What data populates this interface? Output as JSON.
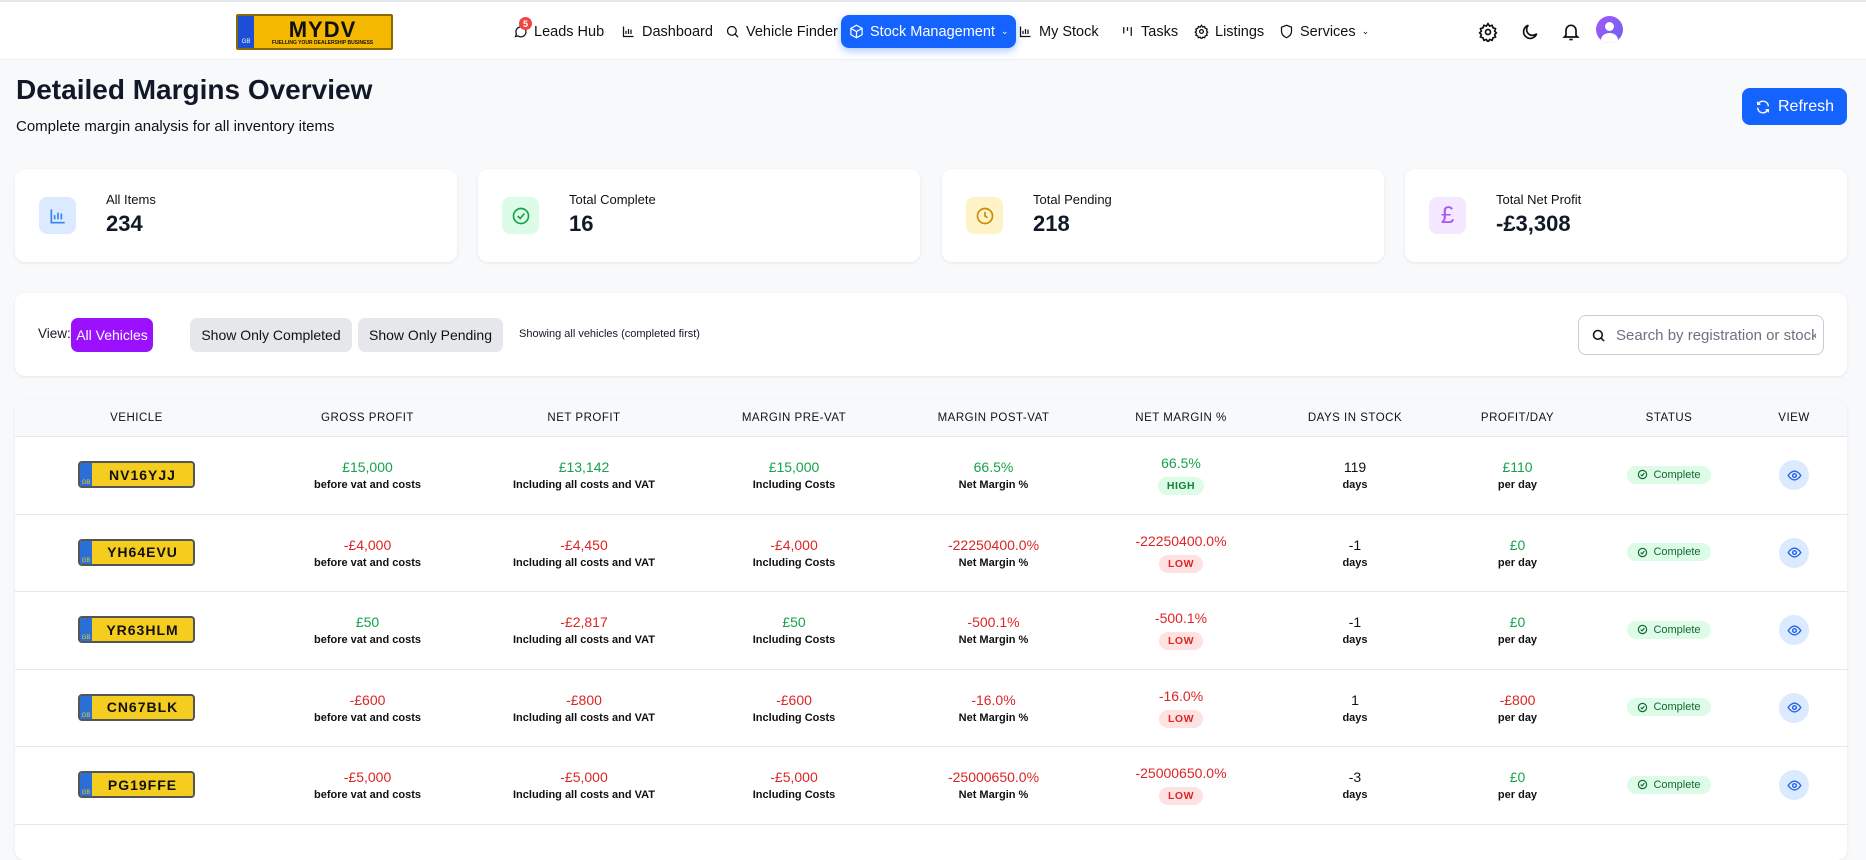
{
  "nav": {
    "logo_text": "MYDV",
    "logo_tagline": "FUELLING YOUR DEALERSHIP BUSINESS",
    "logo_country": "GB",
    "items": [
      {
        "label": "Leads Hub",
        "icon": "chat-icon",
        "badge": "5"
      },
      {
        "label": "Dashboard",
        "icon": "bar-chart-icon"
      },
      {
        "label": "Vehicle Finder",
        "icon": "search-icon"
      },
      {
        "label": "Stock Management",
        "icon": "box-icon",
        "active": true
      },
      {
        "label": "My Stock",
        "icon": "bar-chart-icon"
      },
      {
        "label": "Tasks",
        "icon": "tasks-icon"
      },
      {
        "label": "Listings",
        "icon": "gear-icon"
      },
      {
        "label": "Services",
        "icon": "shield-icon"
      }
    ]
  },
  "page": {
    "title": "Detailed Margins Overview",
    "subtitle": "Complete margin analysis for all inventory items",
    "refresh_label": "Refresh"
  },
  "stats": [
    {
      "label": "All Items",
      "value": "234",
      "color": "#3b82f6"
    },
    {
      "label": "Total Complete",
      "value": "16",
      "color": "#16a34a"
    },
    {
      "label": "Total Pending",
      "value": "218",
      "color": "#ca8a04"
    },
    {
      "label": "Total Net Profit",
      "value": "-£3,308",
      "color": "#a855f7"
    }
  ],
  "filter": {
    "label": "View:",
    "buttons": [
      "All Vehicles",
      "Show Only Completed",
      "Show Only Pending"
    ],
    "active": "All Vehicles",
    "note": "Showing all vehicles (completed first)",
    "search_placeholder": "Search by registration or stock"
  },
  "table": {
    "headers": [
      "VEHICLE",
      "GROSS PROFIT",
      "NET PROFIT",
      "MARGIN PRE-VAT",
      "MARGIN POST-VAT",
      "NET MARGIN %",
      "DAYS IN STOCK",
      "PROFIT/DAY",
      "STATUS",
      "VIEW"
    ],
    "sub": {
      "gross": "before vat and costs",
      "net": "Including all costs and VAT",
      "pre": "Including Costs",
      "post": "Net Margin %",
      "days": "days",
      "perday": "per day"
    },
    "rows": [
      {
        "reg": "NV16YJJ",
        "gross": "£15,000",
        "net": "£13,142",
        "pre": "£15,000",
        "post": "66.5%",
        "netm": "66.5%",
        "level": "HIGH",
        "days": "119",
        "perday": "£110",
        "status": "Complete",
        "gs": "g",
        "ns": "g",
        "ps": "g",
        "pos": "g",
        "nms": "g",
        "pds": "g"
      },
      {
        "reg": "YH64EVU",
        "gross": "-£4,000",
        "net": "-£4,450",
        "pre": "-£4,000",
        "post": "-22250400.0%",
        "netm": "-22250400.0%",
        "level": "LOW",
        "days": "-1",
        "perday": "£0",
        "status": "Complete",
        "gs": "r",
        "ns": "r",
        "ps": "r",
        "pos": "r",
        "nms": "r",
        "pds": "g"
      },
      {
        "reg": "YR63HLM",
        "gross": "£50",
        "net": "-£2,817",
        "pre": "£50",
        "post": "-500.1%",
        "netm": "-500.1%",
        "level": "LOW",
        "days": "-1",
        "perday": "£0",
        "status": "Complete",
        "gs": "g",
        "ns": "r",
        "ps": "g",
        "pos": "r",
        "nms": "r",
        "pds": "g"
      },
      {
        "reg": "CN67BLK",
        "gross": "-£600",
        "net": "-£800",
        "pre": "-£600",
        "post": "-16.0%",
        "netm": "-16.0%",
        "level": "LOW",
        "days": "1",
        "perday": "-£800",
        "status": "Complete",
        "gs": "r",
        "ns": "r",
        "ps": "r",
        "pos": "r",
        "nms": "r",
        "pds": "r"
      },
      {
        "reg": "PG19FFE",
        "gross": "-£5,000",
        "net": "-£5,000",
        "pre": "-£5,000",
        "post": "-25000650.0%",
        "netm": "-25000650.0%",
        "level": "LOW",
        "days": "-3",
        "perday": "£0",
        "status": "Complete",
        "gs": "r",
        "ns": "r",
        "ps": "r",
        "pos": "r",
        "nms": "r",
        "pds": "g"
      }
    ]
  }
}
